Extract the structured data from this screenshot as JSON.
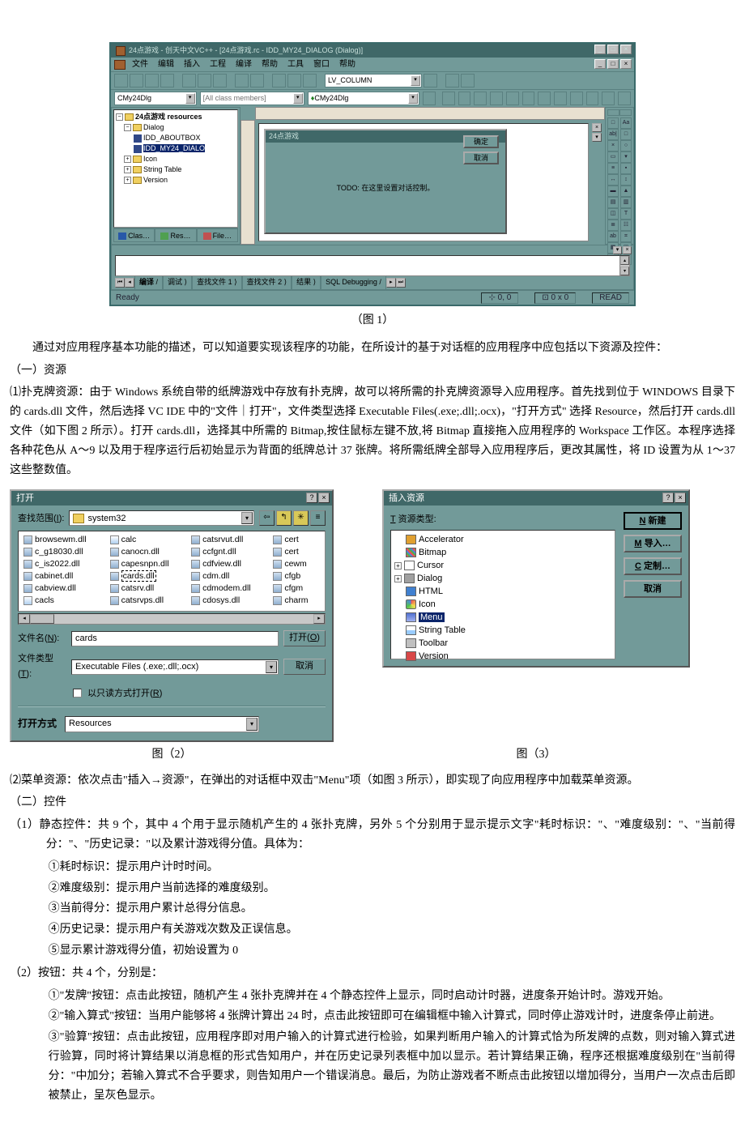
{
  "ide": {
    "title": "24点游戏 - 创天中文VC++ - [24点游戏.rc - IDD_MY24_DIALOG (Dialog)]",
    "winbtns": {
      "min": "_",
      "max": "□",
      "close": "×"
    },
    "menu": [
      "文件",
      "编辑",
      "插入",
      "工程",
      "编译",
      "帮助",
      "工具",
      "窗口",
      "帮助"
    ],
    "combo_class": "CMy24Dlg",
    "combo_members": "[All class members]",
    "combo_func": "CMy24Dlg",
    "toolbar2_combo": "LV_COLUMN",
    "tree": {
      "root": "24点游戏 resources",
      "dialog": "Dialog",
      "about": "IDD_ABOUTBOX",
      "main": "IDD_MY24_DIALO",
      "icon": "Icon",
      "str": "String Table",
      "ver": "Version"
    },
    "tree_tabs": [
      "Clas…",
      "Res…",
      "File…"
    ],
    "mock_title": "24点游戏",
    "mock_ok": "确定",
    "mock_cancel": "取消",
    "mock_todo": "TODO: 在这里设置对话控制。",
    "palette": [
      [
        "□",
        "Aa"
      ],
      [
        "ab|",
        "□"
      ],
      [
        "×",
        "○"
      ],
      [
        "▭",
        "▾"
      ],
      [
        "≡",
        "▪"
      ],
      [
        "↔",
        "↕"
      ],
      [
        "▬",
        "▲"
      ],
      [
        "▤",
        "▥"
      ],
      [
        "◫",
        "T"
      ],
      [
        "≣",
        "☷"
      ],
      [
        "ab",
        "⌗"
      ],
      [
        "▦",
        "◫"
      ],
      [
        "◯",
        "⚙"
      ]
    ],
    "out_tabs": [
      "编译",
      "调试",
      "查找文件 1",
      "查找文件 2",
      "结果",
      "SQL Debugging"
    ],
    "status_ready": "Ready",
    "status_pos": "0, 0",
    "status_size": "0 x 0",
    "status_read": "READ"
  },
  "fig1_caption": "（图 1）",
  "p1": "通过对应用程序基本功能的描述，可以知道要实现该程序的功能，在所设计的基于对话框的应用程序中应包括以下资源及控件：",
  "sec1_head": "（一）资源",
  "pRes1a": "⑴扑克牌资源：由于 Windows 系统自带的纸牌游戏中存放有扑克牌，故可以将所需的扑克牌资源导入应用程序。首先找到位于 WINDOWS 目录下的 cards.dll 文件，然后选择 VC IDE 中的\"文件｜打开\"，文件类型选择 Executable Files(.exe;.dll;.ocx)，\"打开方式\" 选择 Resource，然后打开 cards.dll 文件（如下图 2 所示）。打开 cards.dll，选择其中所需的 Bitmap,按住鼠标左键不放,将 Bitmap 直接拖入应用程序的 Workspace 工作区。本程序选择各种花色从 A～9 以及用于程序运行后初始显示为背面的纸牌总计 37 张牌。将所需纸牌全部导入应用程序后，更改其属性，将 ID 设置为从 1～37 这些整数值。",
  "open": {
    "title": "打开",
    "path_label": "查找范围",
    "path_label_ul": "I",
    "path_value": "system32",
    "nav": [
      "⇦",
      "↰",
      "✳",
      "≡"
    ],
    "files": [
      [
        {
          "n": "browsewm.dll",
          "t": "dll"
        },
        {
          "n": "calc",
          "t": "exe"
        },
        {
          "n": "catsrvut.dll",
          "t": "dll"
        },
        {
          "n": "cert",
          "t": "dll"
        }
      ],
      [
        {
          "n": "c_g18030.dll",
          "t": "dll"
        },
        {
          "n": "canocn.dll",
          "t": "dll"
        },
        {
          "n": "ccfgnt.dll",
          "t": "dll"
        },
        {
          "n": "cert",
          "t": "dll"
        }
      ],
      [
        {
          "n": "c_is2022.dll",
          "t": "dll"
        },
        {
          "n": "capesnpn.dll",
          "t": "dll"
        },
        {
          "n": "cdfview.dll",
          "t": "dll"
        },
        {
          "n": "cewm",
          "t": "dll"
        }
      ],
      [
        {
          "n": "cabinet.dll",
          "t": "dll"
        },
        {
          "n": "cards.dll",
          "t": "dll",
          "sel": true
        },
        {
          "n": "cdm.dll",
          "t": "dll"
        },
        {
          "n": "cfgb",
          "t": "dll"
        }
      ],
      [
        {
          "n": "cabview.dll",
          "t": "dll"
        },
        {
          "n": "catsrv.dll",
          "t": "dll"
        },
        {
          "n": "cdmodem.dll",
          "t": "dll"
        },
        {
          "n": "cfgm",
          "t": "dll"
        }
      ],
      [
        {
          "n": "cacls",
          "t": "exe"
        },
        {
          "n": "catsrvps.dll",
          "t": "dll"
        },
        {
          "n": "cdosys.dll",
          "t": "dll"
        },
        {
          "n": "charm",
          "t": "dll"
        }
      ]
    ],
    "fname_label": "文件名",
    "fname_ul": "N",
    "fname_value": "cards",
    "ftype_label": "文件类型",
    "ftype_ul": "T",
    "ftype_value": "Executable Files (.exe;.dll;.ocx)",
    "open_btn": "打开",
    "open_ul": "O",
    "cancel_btn": "取消",
    "readonly": "以只读方式打开",
    "readonly_ul": "R",
    "openas_label": "打开方式",
    "openas_value": "Resources"
  },
  "ins": {
    "title": "插入资源",
    "list_label": "资源类型",
    "list_ul": "T",
    "items": [
      {
        "n": "Accelerator",
        "ico": "ric-acc"
      },
      {
        "n": "Bitmap",
        "ico": "ric-bmp"
      },
      {
        "n": "Cursor",
        "ico": "ric-cur",
        "pm": "+"
      },
      {
        "n": "Dialog",
        "ico": "ric-dlg",
        "pm": "+"
      },
      {
        "n": "HTML",
        "ico": "ric-html"
      },
      {
        "n": "Icon",
        "ico": "ric-icon"
      },
      {
        "n": "Menu",
        "ico": "ric-menu",
        "sel": true
      },
      {
        "n": "String Table",
        "ico": "ric-str"
      },
      {
        "n": "Toolbar",
        "ico": "ric-tb"
      },
      {
        "n": "Version",
        "ico": "ric-ver"
      }
    ],
    "btn_new": "新建",
    "btn_new_ul": "N",
    "btn_import": "导入…",
    "btn_import_ul": "M",
    "btn_custom": "定制…",
    "btn_custom_ul": "C",
    "btn_cancel": "取消"
  },
  "fig2_caption": "图（2）",
  "fig3_caption": "图（3）",
  "pRes2": "⑵菜单资源：依次点击\"插入→资源\"，在弹出的对话框中双击\"Menu\"项（如图 3 所示），即实现了向应用程序中加载菜单资源。",
  "sec2_head": "（二）控件",
  "ctrl1_head": "（1）静态控件：共 9 个，其中 4 个用于显示随机产生的 4 张扑克牌，另外 5 个分别用于显示提示文字\"耗时标识：\"、\"难度级别：\"、\"当前得分：\"、\"历史记录：\"以及累计游戏得分值。具体为：",
  "ctrl1_1": "①耗时标识：提示用户计时时间。",
  "ctrl1_2": "②难度级别：提示用户当前选择的难度级别。",
  "ctrl1_3": "③当前得分：提示用户累计总得分信息。",
  "ctrl1_4": "④历史记录：提示用户有关游戏次数及正误信息。",
  "ctrl1_5": "⑤显示累计游戏得分值，初始设置为 0",
  "ctrl2_head": "（2）按钮：共 4 个，分别是：",
  "ctrl2_1": "①\"发牌\"按钮：点击此按钮，随机产生 4 张扑克牌并在 4 个静态控件上显示，同时启动计时器，进度条开始计时。游戏开始。",
  "ctrl2_2": "②\"输入算式\"按钮：当用户能够将 4 张牌计算出 24 时，点击此按钮即可在编辑框中输入计算式，同时停止游戏计时，进度条停止前进。",
  "ctrl2_3": "③\"验算\"按钮：点击此按钮，应用程序即对用户输入的计算式进行检验，如果判断用户输入的计算式恰为所发牌的点数，则对输入算式进行验算，同时将计算结果以消息框的形式告知用户，并在历史记录列表框中加以显示。若计算结果正确，程序还根据难度级别在\"当前得分：\"中加分；若输入算式不合乎要求，则告知用户一个错误消息。最后，为防止游戏者不断点击此按钮以增加得分，当用户一次点击后即被禁止，呈灰色显示。"
}
